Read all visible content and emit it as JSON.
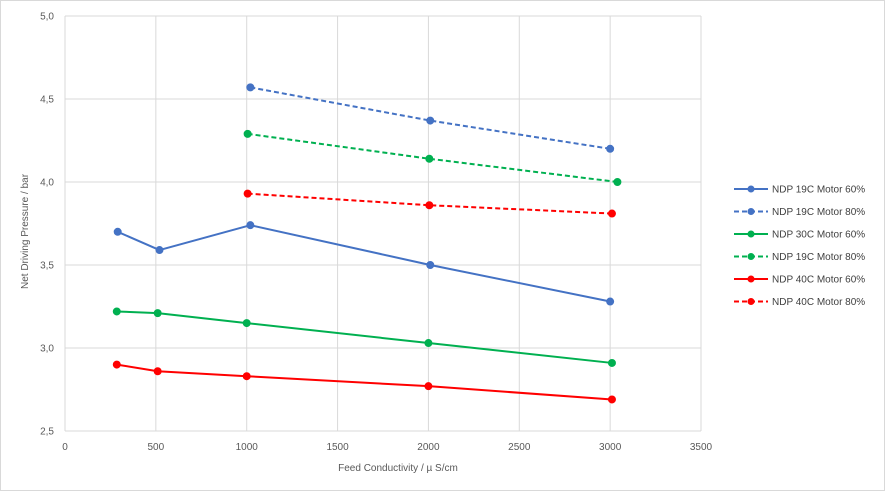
{
  "chart_data": {
    "type": "line",
    "xlabel": "Feed Conductivity / µ S/cm",
    "ylabel": "Net Driving Pressure / bar",
    "xlim": [
      0,
      3500
    ],
    "ylim": [
      2.5,
      5.0
    ],
    "x_ticks": [
      "0",
      "500",
      "1000",
      "1500",
      "2000",
      "2500",
      "3000",
      "3500"
    ],
    "y_ticks": [
      "2,5",
      "3,0",
      "3,5",
      "4,0",
      "4,5",
      "5,0"
    ],
    "grid": true,
    "legend_position": "right",
    "series": [
      {
        "name": "NDP 19C Motor 60%",
        "color": "#4472c4",
        "dash": false,
        "points": [
          [
            290,
            3.7
          ],
          [
            520,
            3.59
          ],
          [
            1020,
            3.74
          ],
          [
            2010,
            3.5
          ],
          [
            3000,
            3.28
          ]
        ]
      },
      {
        "name": "NDP 19C Motor 80%",
        "color": "#4472c4",
        "dash": true,
        "points": [
          [
            1020,
            4.57
          ],
          [
            2010,
            4.37
          ],
          [
            3000,
            4.2
          ]
        ]
      },
      {
        "name": "NDP 30C Motor 60%",
        "color": "#00b050",
        "dash": false,
        "points": [
          [
            285,
            3.22
          ],
          [
            510,
            3.21
          ],
          [
            1000,
            3.15
          ],
          [
            2000,
            3.03
          ],
          [
            3010,
            2.91
          ]
        ]
      },
      {
        "name": "NDP 19C Motor 80%",
        "color": "#00b050",
        "dash": true,
        "points": [
          [
            1005,
            4.29
          ],
          [
            2005,
            4.14
          ],
          [
            3040,
            4.0
          ]
        ]
      },
      {
        "name": "NDP 40C Motor 60%",
        "color": "#ff0000",
        "dash": false,
        "points": [
          [
            285,
            2.9
          ],
          [
            510,
            2.86
          ],
          [
            1000,
            2.83
          ],
          [
            2000,
            2.77
          ],
          [
            3010,
            2.69
          ]
        ]
      },
      {
        "name": "NDP 40C Motor 80%",
        "color": "#ff0000",
        "dash": true,
        "points": [
          [
            1005,
            3.93
          ],
          [
            2005,
            3.86
          ],
          [
            3010,
            3.81
          ]
        ]
      }
    ]
  }
}
